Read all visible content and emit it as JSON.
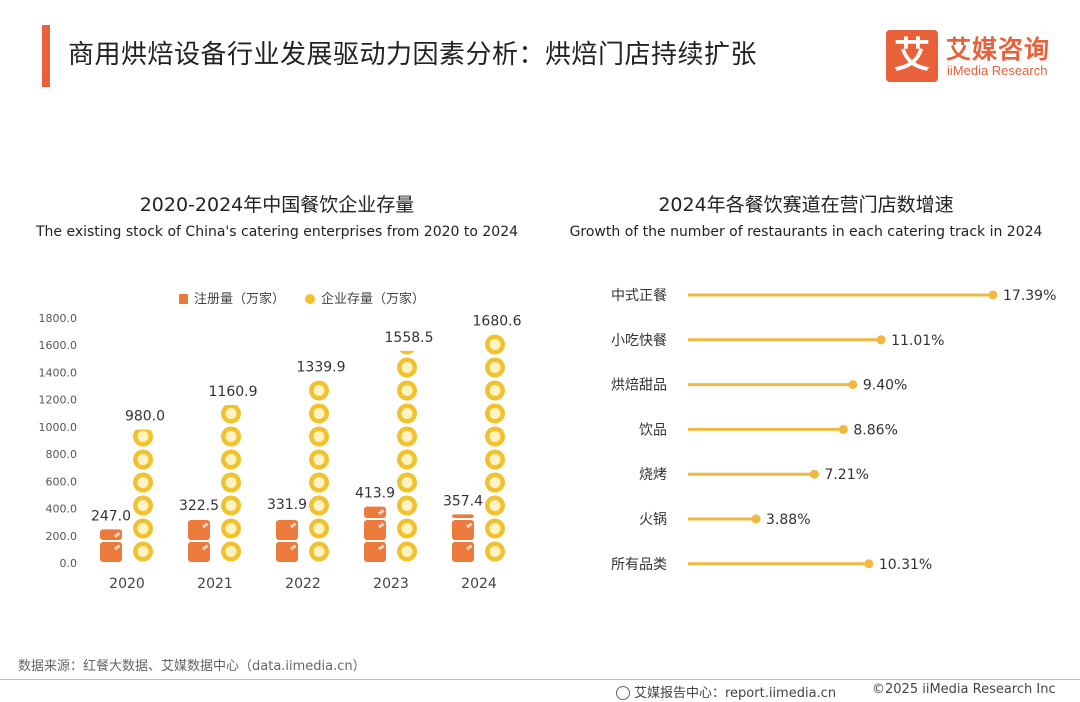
{
  "header": {
    "title": "商用烘焙设备行业发展驱动力因素分析：烘焙门店持续扩张",
    "logo_mark": "艾",
    "logo_cn": "艾媒咨询",
    "logo_en": "iiMedia Research"
  },
  "colors": {
    "accent": "#e8613a",
    "registered": "#ec7a3c",
    "stock": "#f2c12e",
    "lollipop": "#f0b840"
  },
  "chart_data": [
    {
      "type": "bar",
      "title": "2020-2024年中国餐饮企业存量",
      "subtitle": "The existing stock of China's catering enterprises from 2020 to 2024",
      "categories": [
        "2020",
        "2021",
        "2022",
        "2023",
        "2024"
      ],
      "series": [
        {
          "name": "注册量（万家）",
          "values": [
            247.0,
            322.5,
            331.9,
            413.9,
            357.4
          ]
        },
        {
          "name": "企业存量（万家）",
          "values": [
            980.0,
            1160.9,
            1339.9,
            1558.5,
            1680.6
          ]
        }
      ],
      "ylim": [
        0,
        1800
      ],
      "yticks": [
        "0.0",
        "200.0",
        "400.0",
        "600.0",
        "800.0",
        "1000.0",
        "1200.0",
        "1400.0",
        "1600.0",
        "1800.0"
      ],
      "legend": "top"
    },
    {
      "type": "bar",
      "orientation": "horizontal",
      "title": "2024年各餐饮赛道在营门店数增速",
      "subtitle": "Growth of the number of restaurants in each catering track in 2024",
      "categories": [
        "中式正餐",
        "小吃快餐",
        "烘焙甜品",
        "饮品",
        "烧烤",
        "火锅",
        "所有品类"
      ],
      "values": [
        17.39,
        11.01,
        9.4,
        8.86,
        7.21,
        3.88,
        10.31
      ],
      "labels": [
        "17.39%",
        "11.01%",
        "9.40%",
        "8.86%",
        "7.21%",
        "3.88%",
        "10.31%"
      ],
      "unit": "%"
    }
  ],
  "footer": {
    "source": "数据来源：红餐大数据、艾媒数据中心（data.iimedia.cn）",
    "site": "艾媒报告中心：report.iimedia.cn",
    "copyright": "©2025  iiMedia Research  Inc"
  }
}
